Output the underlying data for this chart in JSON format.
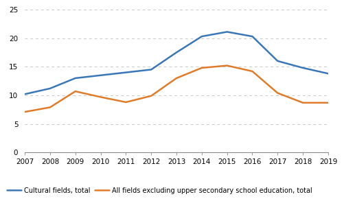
{
  "years": [
    2007,
    2008,
    2009,
    2010,
    2011,
    2012,
    2013,
    2014,
    2015,
    2016,
    2017,
    2018,
    2019
  ],
  "cultural_fields": [
    10.2,
    11.2,
    13.0,
    13.5,
    14.0,
    14.5,
    17.5,
    20.3,
    21.1,
    20.3,
    16.0,
    14.8,
    13.8
  ],
  "all_fields": [
    7.1,
    7.9,
    10.7,
    9.7,
    8.8,
    9.9,
    13.0,
    14.8,
    15.2,
    14.2,
    10.4,
    8.7,
    8.7
  ],
  "cultural_color": "#3a77b8",
  "all_fields_color": "#e07b2a",
  "line_width": 1.8,
  "ylim": [
    0,
    25
  ],
  "yticks": [
    0,
    5,
    10,
    15,
    20,
    25
  ],
  "background_color": "#ffffff",
  "grid_color": "#c8c8c8",
  "legend_labels": [
    "Cultural fields, total",
    "All fields excluding upper secondary school education, total"
  ],
  "legend_fontsize": 7.0,
  "tick_fontsize": 7.5
}
